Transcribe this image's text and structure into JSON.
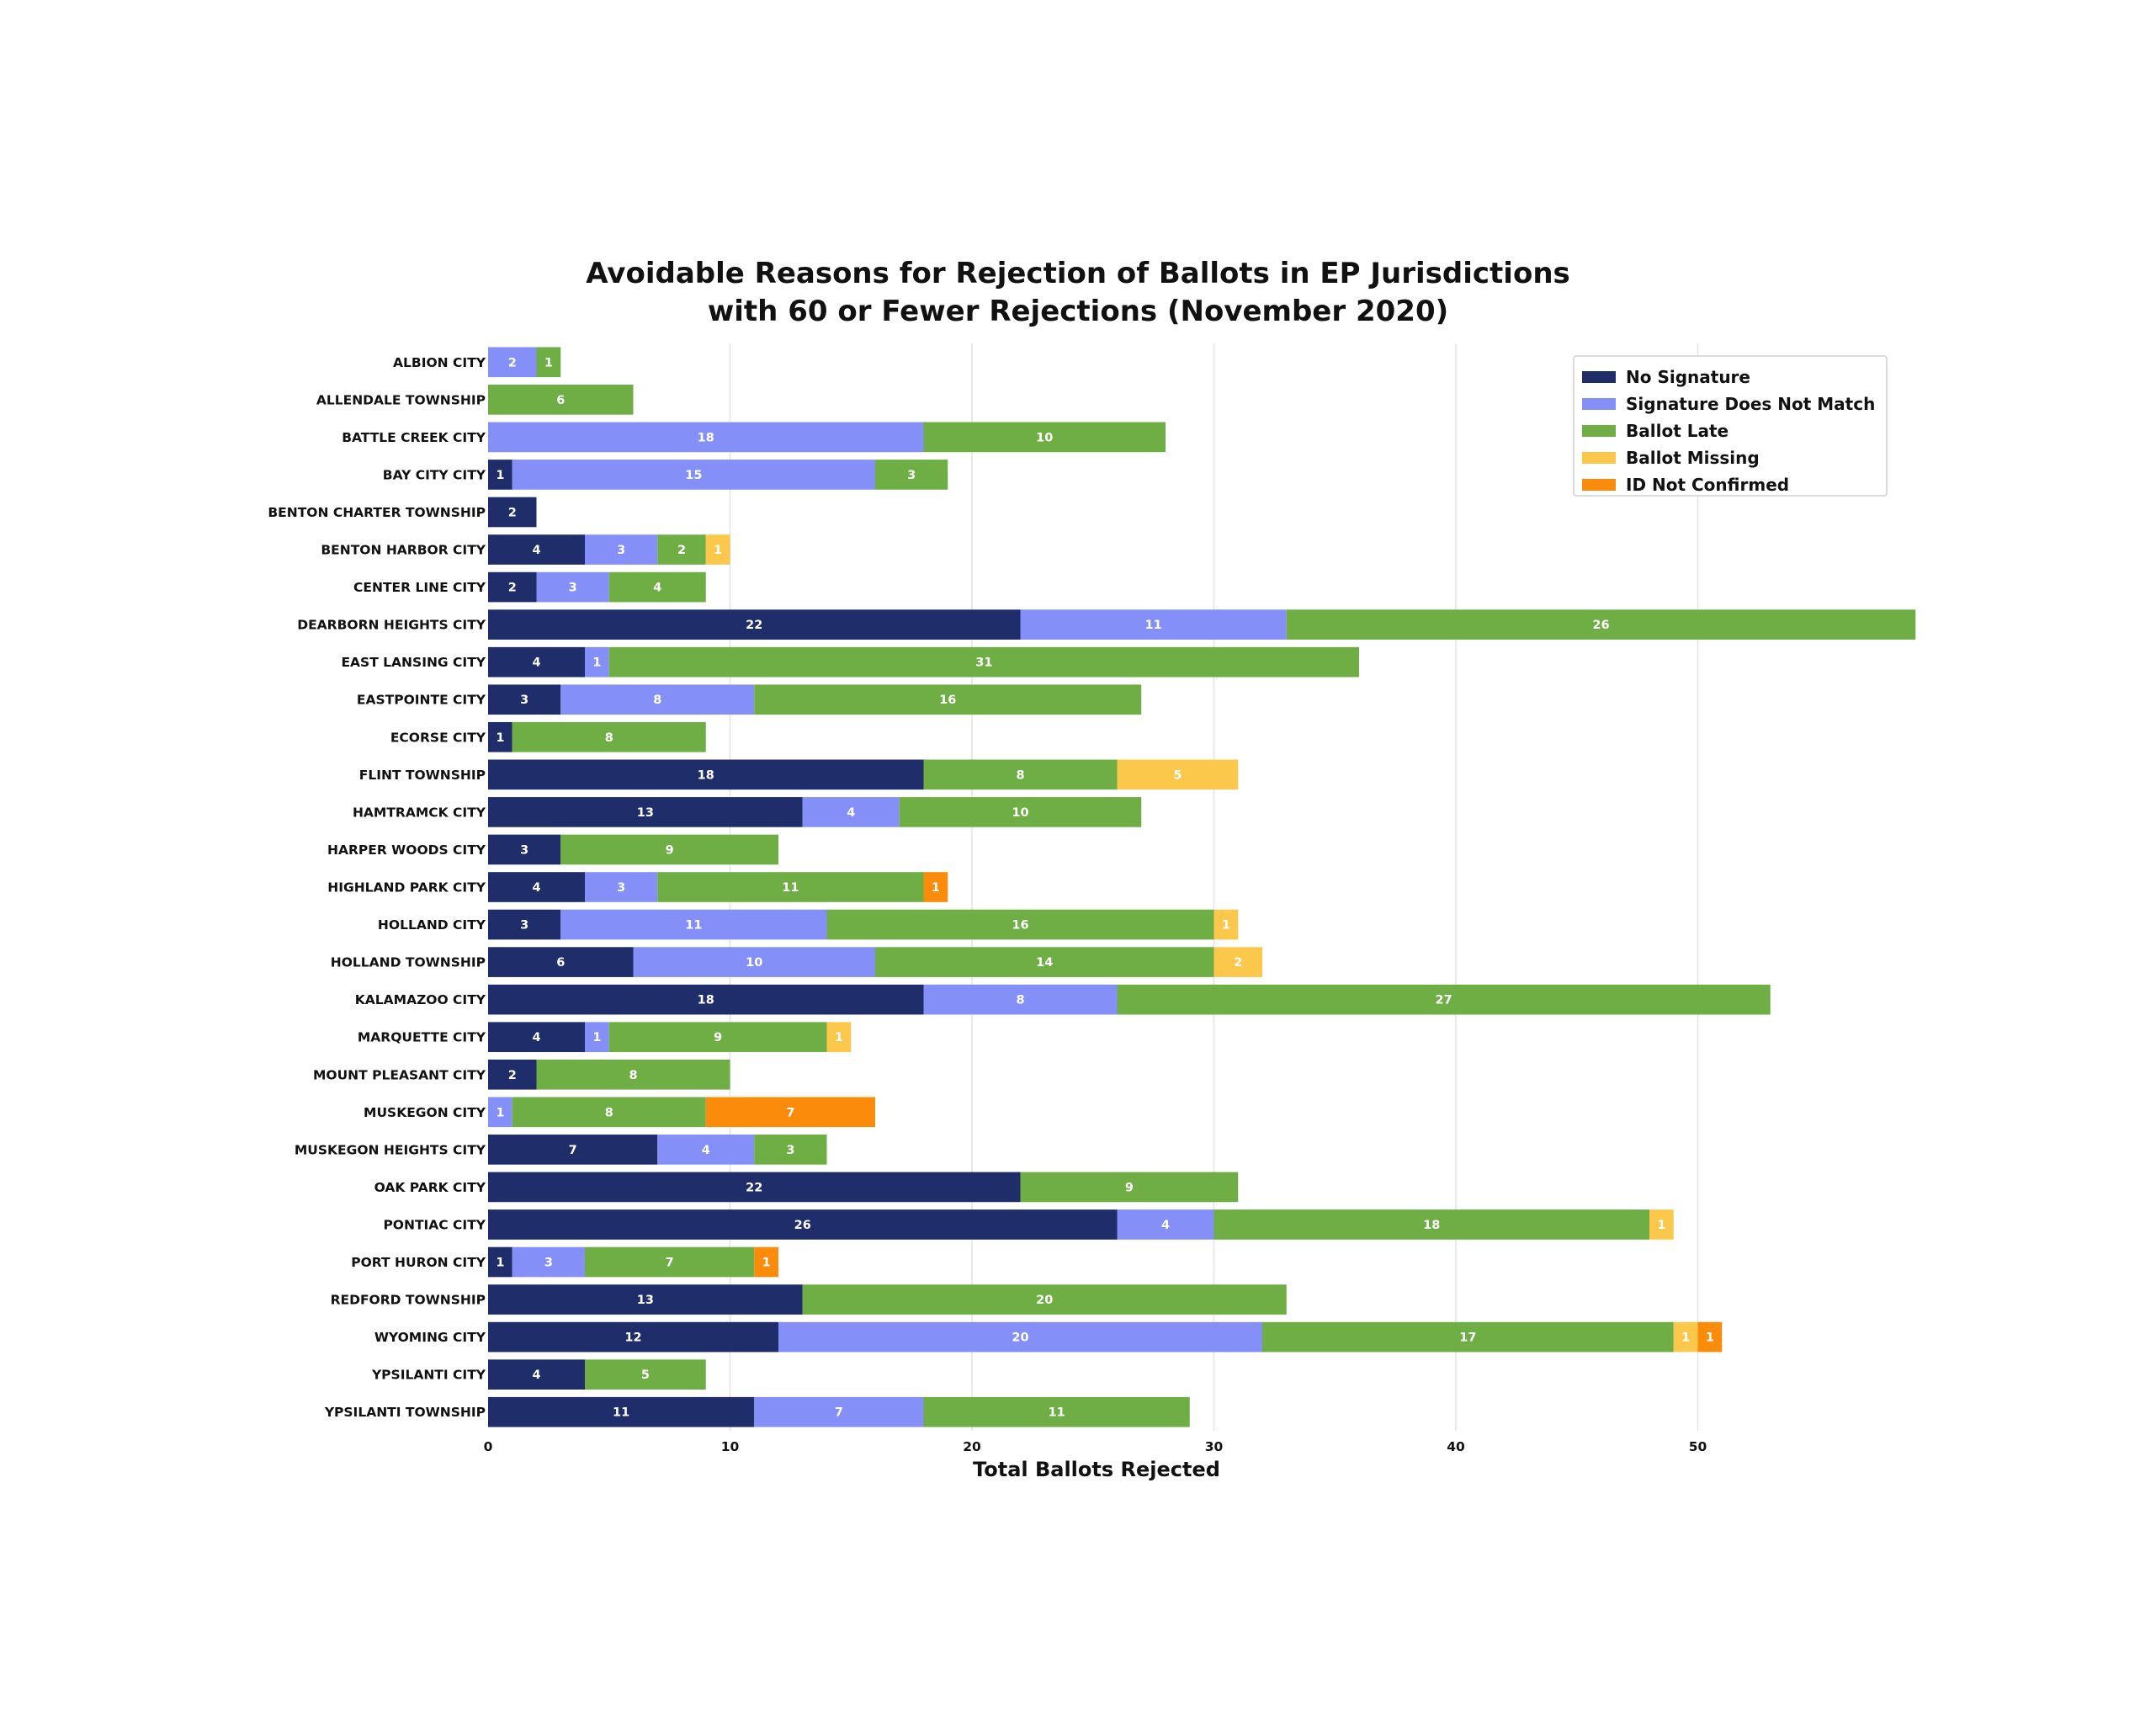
{
  "chart_data": {
    "type": "bar",
    "orientation": "horizontal",
    "stacked": true,
    "title": "Avoidable Reasons for Rejection of Ballots in EP Jurisdictions",
    "subtitle": "with 60 or Fewer Rejections (November 2020)",
    "xlabel": "Total Ballots Rejected",
    "ylabel": "",
    "xlim": [
      0,
      59
    ],
    "xticks": [
      0,
      10,
      20,
      30,
      40,
      50
    ],
    "grid": true,
    "legend_position": "top-right",
    "categories": [
      "ALBION CITY",
      "ALLENDALE TOWNSHIP",
      "BATTLE CREEK CITY",
      "BAY CITY CITY",
      "BENTON CHARTER TOWNSHIP",
      "BENTON HARBOR CITY",
      "CENTER LINE CITY",
      "DEARBORN HEIGHTS CITY",
      "EAST LANSING CITY",
      "EASTPOINTE CITY",
      "ECORSE CITY",
      "FLINT TOWNSHIP",
      "HAMTRAMCK CITY",
      "HARPER WOODS CITY",
      "HIGHLAND PARK CITY",
      "HOLLAND CITY",
      "HOLLAND TOWNSHIP",
      "KALAMAZOO CITY",
      "MARQUETTE CITY",
      "MOUNT PLEASANT CITY",
      "MUSKEGON CITY",
      "MUSKEGON HEIGHTS CITY",
      "OAK PARK CITY",
      "PONTIAC CITY",
      "PORT HURON CITY",
      "REDFORD TOWNSHIP",
      "WYOMING CITY",
      "YPSILANTI CITY",
      "YPSILANTI TOWNSHIP"
    ],
    "series": [
      {
        "name": "No Signature",
        "color": "#1f2d6b",
        "label_color": "#ffffff",
        "values": [
          0,
          0,
          0,
          1,
          2,
          4,
          2,
          22,
          4,
          3,
          1,
          18,
          13,
          3,
          4,
          3,
          6,
          18,
          4,
          2,
          0,
          7,
          22,
          26,
          1,
          13,
          12,
          4,
          11
        ]
      },
      {
        "name": "Signature Does Not Match",
        "color": "#8490f7",
        "label_color": "#ffffff",
        "values": [
          2,
          0,
          18,
          15,
          0,
          3,
          3,
          11,
          1,
          8,
          0,
          0,
          4,
          0,
          3,
          11,
          10,
          8,
          1,
          0,
          1,
          4,
          0,
          4,
          3,
          0,
          20,
          0,
          7
        ]
      },
      {
        "name": "Ballot Late",
        "color": "#6eae45",
        "label_color": "#ffffff",
        "values": [
          1,
          6,
          10,
          3,
          0,
          2,
          4,
          26,
          31,
          16,
          8,
          8,
          10,
          9,
          11,
          16,
          14,
          27,
          9,
          8,
          8,
          3,
          9,
          18,
          7,
          20,
          17,
          5,
          11
        ]
      },
      {
        "name": "Ballot Missing",
        "color": "#fbc84c",
        "label_color": "#ffffff",
        "values": [
          0,
          0,
          0,
          0,
          0,
          1,
          0,
          0,
          0,
          0,
          0,
          5,
          0,
          0,
          0,
          1,
          2,
          0,
          1,
          0,
          0,
          0,
          0,
          1,
          0,
          0,
          1,
          0,
          0
        ]
      },
      {
        "name": "ID Not Confirmed",
        "color": "#fb8c0b",
        "label_color": "#ffffff",
        "values": [
          0,
          0,
          0,
          0,
          0,
          0,
          0,
          0,
          0,
          0,
          0,
          0,
          0,
          0,
          1,
          0,
          0,
          0,
          0,
          0,
          7,
          0,
          0,
          0,
          1,
          0,
          1,
          0,
          0
        ]
      }
    ]
  }
}
